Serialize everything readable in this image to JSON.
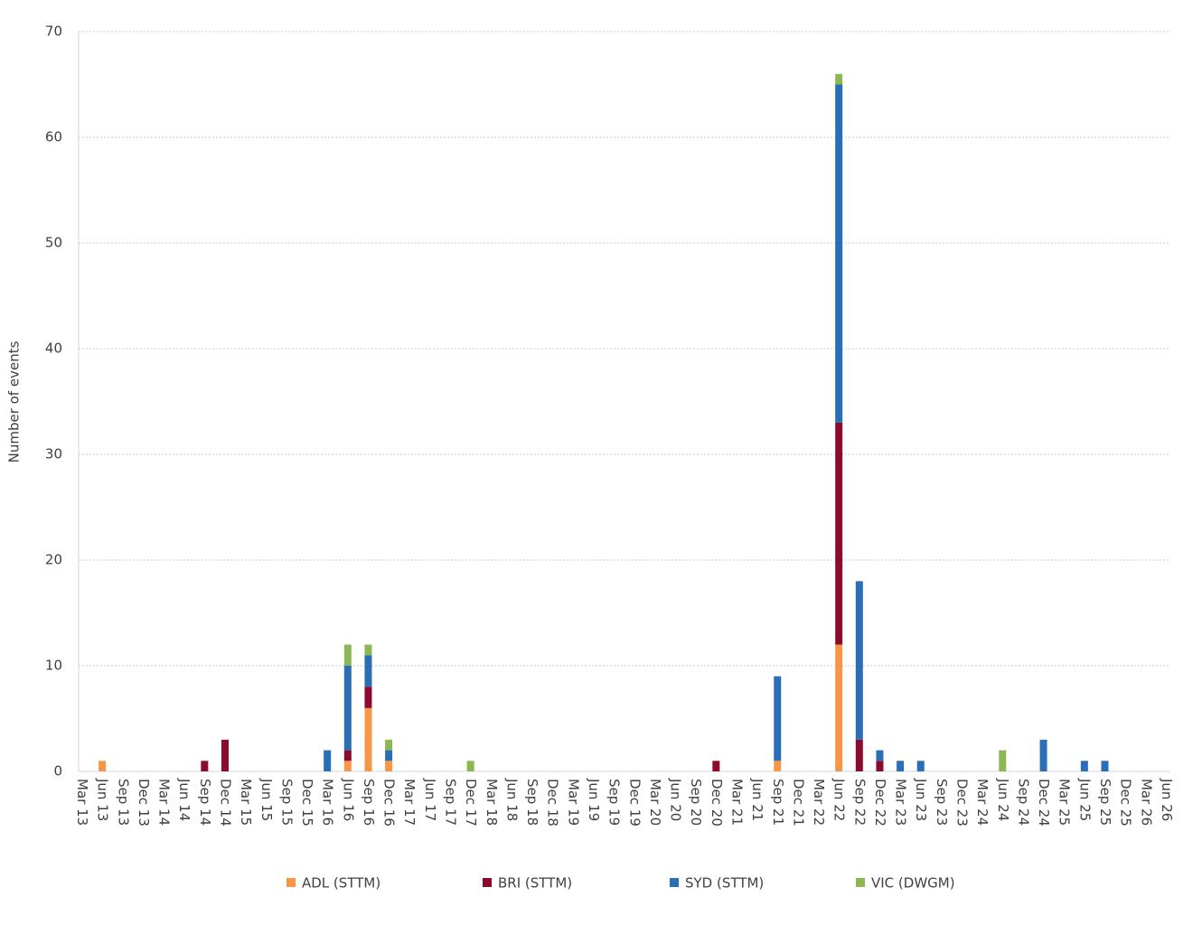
{
  "chart_data": {
    "type": "stacked_bar",
    "y_label": "Number of events",
    "categories": [
      "Mar 13",
      "Jun 13",
      "Sep 13",
      "Dec 13",
      "Mar 14",
      "Jun 14",
      "Sep 14",
      "Dec 14",
      "Mar 15",
      "Jun 15",
      "Sep 15",
      "Dec 15",
      "Mar 16",
      "Jun 16",
      "Sep 16",
      "Dec 16",
      "Mar 17",
      "Jun 17",
      "Sep 17",
      "Dec 17",
      "Mar 18",
      "Jun 18",
      "Sep 18",
      "Dec 18",
      "Mar 19",
      "Jun 19",
      "Sep 19",
      "Dec 19",
      "Mar 20",
      "Jun 20",
      "Sep 20",
      "Dec 20",
      "Mar 21",
      "Jun 21",
      "Sep 21",
      "Dec 21",
      "Mar 22",
      "Jun 22",
      "Sep 22",
      "Dec 22",
      "Mar 23",
      "Jun 23",
      "Sep 23",
      "Dec 23",
      "Mar 24",
      "Jun 24",
      "Sep 24",
      "Dec 24",
      "Mar 25",
      "Jun 25",
      "Sep 25",
      "Dec 25",
      "Mar 26",
      "Jun 26"
    ],
    "series": [
      {
        "name": "ADL (STTM)",
        "color": "#f79646",
        "values": [
          0,
          1,
          0,
          0,
          0,
          0,
          0,
          0,
          0,
          0,
          0,
          0,
          0,
          1,
          6,
          1,
          0,
          0,
          0,
          0,
          0,
          0,
          0,
          0,
          0,
          0,
          0,
          0,
          0,
          0,
          0,
          0,
          0,
          0,
          1,
          0,
          0,
          12,
          0,
          0,
          0,
          0,
          0,
          0,
          0,
          0,
          0,
          0,
          0,
          0,
          0,
          0,
          0,
          0
        ]
      },
      {
        "name": "BRI (STTM)",
        "color": "#8b0a2e",
        "values": [
          0,
          0,
          0,
          0,
          0,
          0,
          1,
          3,
          0,
          0,
          0,
          0,
          0,
          1,
          2,
          0,
          0,
          0,
          0,
          0,
          0,
          0,
          0,
          0,
          0,
          0,
          0,
          0,
          0,
          0,
          0,
          1,
          0,
          0,
          0,
          0,
          0,
          21,
          3,
          1,
          0,
          0,
          0,
          0,
          0,
          0,
          0,
          0,
          0,
          0,
          0,
          0,
          0,
          0
        ]
      },
      {
        "name": "SYD (STTM)",
        "color": "#2a6fb6",
        "values": [
          0,
          0,
          0,
          0,
          0,
          0,
          0,
          0,
          0,
          0,
          0,
          0,
          2,
          8,
          3,
          1,
          0,
          0,
          0,
          0,
          0,
          0,
          0,
          0,
          0,
          0,
          0,
          0,
          0,
          0,
          0,
          0,
          0,
          0,
          8,
          0,
          0,
          32,
          15,
          1,
          1,
          1,
          0,
          0,
          0,
          0,
          0,
          3,
          0,
          1,
          1,
          0,
          0,
          0
        ]
      },
      {
        "name": "VIC (DWGM)",
        "color": "#8db654",
        "values": [
          0,
          0,
          0,
          0,
          0,
          0,
          0,
          0,
          0,
          0,
          0,
          0,
          0,
          2,
          1,
          1,
          0,
          0,
          0,
          1,
          0,
          0,
          0,
          0,
          0,
          0,
          0,
          0,
          0,
          0,
          0,
          0,
          0,
          0,
          0,
          0,
          0,
          1,
          0,
          0,
          0,
          0,
          0,
          0,
          0,
          2,
          0,
          0,
          0,
          0,
          0,
          0,
          0,
          0
        ]
      }
    ],
    "ylim": [
      0,
      70
    ],
    "yticks": [
      0,
      10,
      20,
      30,
      40,
      50,
      60,
      70
    ],
    "grid": true,
    "legend": "bottom"
  }
}
